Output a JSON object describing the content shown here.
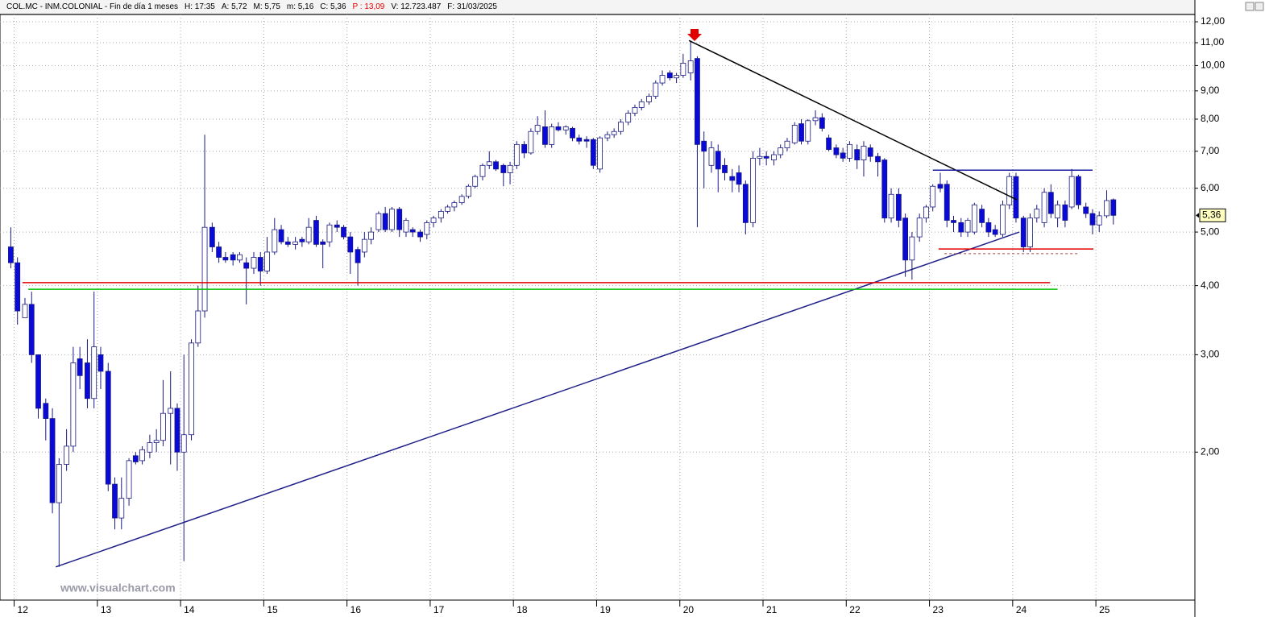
{
  "chart_data": {
    "type": "candlestick",
    "info": [
      "COL.MC - INM.COLONIAL - Fin de día 1 meses",
      "H: 17:35",
      "A: 5,72",
      "M: 5,75",
      "m: 5,16",
      "C: 5,36",
      "P : 13,09",
      "V: 12.723.487",
      "F: 31/03/2025"
    ],
    "watermark": "www.visualchart.com",
    "log_scale": true,
    "grid": true,
    "up_color": "#ffffff",
    "down_color": "#0a0ad8",
    "wick_color": "#1a1a80",
    "xlim": [
      2011.83,
      2026.19
    ],
    "ylim": [
      1.08,
      12.37
    ],
    "xticks": [
      {
        "value": 2012,
        "label": "12"
      },
      {
        "value": 2013,
        "label": "13"
      },
      {
        "value": 2014,
        "label": "14"
      },
      {
        "value": 2015,
        "label": "15"
      },
      {
        "value": 2016,
        "label": "16"
      },
      {
        "value": 2017,
        "label": "17"
      },
      {
        "value": 2018,
        "label": "18"
      },
      {
        "value": 2019,
        "label": "19"
      },
      {
        "value": 2020,
        "label": "20"
      },
      {
        "value": 2021,
        "label": "21"
      },
      {
        "value": 2022,
        "label": "22"
      },
      {
        "value": 2023,
        "label": "23"
      },
      {
        "value": 2024,
        "label": "24"
      },
      {
        "value": 2025,
        "label": "25"
      }
    ],
    "yticks": [
      {
        "value": 2,
        "label": "2,00"
      },
      {
        "value": 3,
        "label": "3,00"
      },
      {
        "value": 4,
        "label": "4,00"
      },
      {
        "value": 5,
        "label": "5,00"
      },
      {
        "value": 6,
        "label": "6,00"
      },
      {
        "value": 7,
        "label": "7,00"
      },
      {
        "value": 8,
        "label": "8,00"
      },
      {
        "value": 9,
        "label": "9,00"
      },
      {
        "value": 10,
        "label": "10,00"
      },
      {
        "value": 11,
        "label": "11,00"
      },
      {
        "value": 12,
        "label": "12,00"
      }
    ],
    "last_price": {
      "value": 5.36,
      "label": "5,36"
    },
    "x": [
      2011.96,
      2012.04,
      2012.13,
      2012.21,
      2012.29,
      2012.38,
      2012.46,
      2012.54,
      2012.63,
      2012.71,
      2012.79,
      2012.88,
      2012.96,
      2013.04,
      2013.13,
      2013.21,
      2013.29,
      2013.38,
      2013.46,
      2013.54,
      2013.63,
      2013.71,
      2013.79,
      2013.88,
      2013.96,
      2014.04,
      2014.13,
      2014.21,
      2014.29,
      2014.38,
      2014.46,
      2014.54,
      2014.63,
      2014.71,
      2014.79,
      2014.88,
      2014.96,
      2015.04,
      2015.13,
      2015.21,
      2015.29,
      2015.38,
      2015.46,
      2015.54,
      2015.63,
      2015.71,
      2015.79,
      2015.88,
      2015.96,
      2016.04,
      2016.13,
      2016.21,
      2016.29,
      2016.38,
      2016.46,
      2016.54,
      2016.63,
      2016.71,
      2016.79,
      2016.88,
      2016.96,
      2017.04,
      2017.13,
      2017.21,
      2017.29,
      2017.38,
      2017.46,
      2017.54,
      2017.63,
      2017.71,
      2017.79,
      2017.88,
      2017.96,
      2018.04,
      2018.13,
      2018.21,
      2018.29,
      2018.38,
      2018.46,
      2018.54,
      2018.63,
      2018.71,
      2018.79,
      2018.88,
      2018.96,
      2019.04,
      2019.13,
      2019.21,
      2019.29,
      2019.38,
      2019.46,
      2019.54,
      2019.63,
      2019.71,
      2019.79,
      2019.88,
      2019.96,
      2020.04,
      2020.13,
      2020.21,
      2020.29,
      2020.38,
      2020.46,
      2020.54,
      2020.63,
      2020.71,
      2020.79,
      2020.88,
      2020.96,
      2021.04,
      2021.13,
      2021.21,
      2021.29,
      2021.38,
      2021.46,
      2021.54,
      2021.63,
      2021.71,
      2021.79,
      2021.88,
      2021.96,
      2022.04,
      2022.13,
      2022.21,
      2022.29,
      2022.38,
      2022.46,
      2022.54,
      2022.63,
      2022.71,
      2022.79,
      2022.88,
      2022.96,
      2023.04,
      2023.13,
      2023.21,
      2023.29,
      2023.38,
      2023.46,
      2023.54,
      2023.63,
      2023.71,
      2023.79,
      2023.88,
      2023.96,
      2024.04,
      2024.13,
      2024.21,
      2024.29,
      2024.38,
      2024.46,
      2024.54,
      2024.63,
      2024.71,
      2024.79,
      2024.88,
      2024.96,
      2025.04,
      2025.13,
      2025.21
    ],
    "ohlc": [
      [
        4.7,
        5.1,
        4.3,
        4.4
      ],
      [
        4.4,
        4.5,
        3.4,
        3.6
      ],
      [
        3.5,
        3.8,
        3.5,
        3.7
      ],
      [
        3.7,
        3.9,
        2.9,
        3.0
      ],
      [
        3.0,
        3.0,
        2.3,
        2.4
      ],
      [
        2.45,
        2.5,
        2.1,
        2.3
      ],
      [
        2.3,
        2.4,
        1.55,
        1.62
      ],
      [
        1.62,
        1.95,
        1.24,
        1.9
      ],
      [
        1.9,
        2.2,
        1.85,
        2.05
      ],
      [
        2.05,
        3.1,
        2.0,
        2.9
      ],
      [
        2.95,
        3.1,
        2.6,
        2.75
      ],
      [
        2.9,
        3.2,
        2.4,
        2.5
      ],
      [
        2.5,
        3.9,
        2.4,
        3.1
      ],
      [
        3.0,
        3.1,
        2.6,
        2.8
      ],
      [
        2.8,
        2.9,
        1.7,
        1.75
      ],
      [
        1.75,
        1.8,
        1.45,
        1.52
      ],
      [
        1.52,
        1.8,
        1.45,
        1.65
      ],
      [
        1.65,
        1.95,
        1.6,
        1.93
      ],
      [
        1.97,
        2.0,
        1.9,
        1.92
      ],
      [
        1.93,
        2.05,
        1.9,
        2.02
      ],
      [
        2.0,
        2.15,
        1.95,
        2.08
      ],
      [
        2.08,
        2.2,
        2.0,
        2.1
      ],
      [
        2.1,
        2.7,
        2.05,
        2.35
      ],
      [
        2.35,
        2.8,
        1.9,
        2.4
      ],
      [
        2.4,
        2.45,
        1.85,
        2.0
      ],
      [
        2.0,
        3.0,
        1.27,
        2.15
      ],
      [
        2.15,
        3.2,
        2.1,
        3.15
      ],
      [
        3.15,
        4.0,
        3.1,
        3.6
      ],
      [
        3.6,
        7.5,
        3.5,
        5.1
      ],
      [
        5.1,
        5.2,
        4.6,
        4.7
      ],
      [
        4.7,
        4.8,
        4.4,
        4.5
      ],
      [
        4.5,
        4.6,
        4.4,
        4.45
      ],
      [
        4.55,
        4.6,
        4.35,
        4.45
      ],
      [
        4.45,
        4.6,
        4.4,
        4.55
      ],
      [
        4.4,
        4.5,
        3.7,
        4.3
      ],
      [
        4.3,
        4.6,
        4.2,
        4.5
      ],
      [
        4.5,
        4.6,
        4.0,
        4.25
      ],
      [
        4.25,
        4.9,
        4.2,
        4.6
      ],
      [
        4.6,
        5.3,
        4.55,
        5.05
      ],
      [
        5.05,
        5.15,
        4.75,
        4.8
      ],
      [
        4.8,
        4.9,
        4.7,
        4.75
      ],
      [
        4.75,
        4.9,
        4.65,
        4.8
      ],
      [
        4.85,
        4.9,
        4.7,
        4.8
      ],
      [
        4.8,
        5.3,
        4.75,
        5.1
      ],
      [
        5.25,
        5.35,
        4.7,
        4.75
      ],
      [
        4.8,
        4.85,
        4.3,
        4.75
      ],
      [
        4.8,
        5.2,
        4.7,
        5.15
      ],
      [
        5.15,
        5.25,
        5.0,
        5.1
      ],
      [
        5.1,
        5.15,
        4.85,
        4.9
      ],
      [
        4.9,
        5.0,
        4.2,
        4.6
      ],
      [
        4.65,
        4.7,
        4.0,
        4.4
      ],
      [
        4.6,
        5.0,
        4.5,
        4.85
      ],
      [
        4.85,
        5.1,
        4.75,
        5.0
      ],
      [
        5.05,
        5.45,
        5.0,
        5.4
      ],
      [
        5.4,
        5.55,
        5.0,
        5.05
      ],
      [
        5.05,
        5.55,
        5.0,
        5.5
      ],
      [
        5.5,
        5.55,
        4.9,
        5.05
      ],
      [
        5.0,
        5.3,
        4.9,
        5.25
      ],
      [
        5.05,
        5.1,
        4.9,
        5.0
      ],
      [
        5.0,
        5.05,
        4.8,
        4.9
      ],
      [
        4.95,
        5.25,
        4.85,
        5.2
      ],
      [
        5.2,
        5.35,
        5.1,
        5.3
      ],
      [
        5.3,
        5.5,
        5.2,
        5.45
      ],
      [
        5.45,
        5.6,
        5.4,
        5.55
      ],
      [
        5.55,
        5.7,
        5.45,
        5.65
      ],
      [
        5.65,
        5.85,
        5.6,
        5.8
      ],
      [
        5.8,
        6.1,
        5.75,
        6.05
      ],
      [
        6.05,
        6.35,
        6.0,
        6.3
      ],
      [
        6.3,
        6.65,
        6.2,
        6.6
      ],
      [
        6.6,
        7.0,
        6.5,
        6.7
      ],
      [
        6.7,
        6.75,
        6.45,
        6.5
      ],
      [
        6.6,
        6.65,
        6.05,
        6.4
      ],
      [
        6.4,
        6.7,
        6.1,
        6.6
      ],
      [
        6.6,
        7.3,
        6.5,
        7.2
      ],
      [
        7.2,
        7.3,
        6.8,
        6.95
      ],
      [
        6.95,
        7.7,
        6.9,
        7.6
      ],
      [
        7.6,
        8.1,
        7.5,
        7.8
      ],
      [
        7.75,
        8.3,
        7.1,
        7.2
      ],
      [
        7.2,
        7.85,
        7.1,
        7.75
      ],
      [
        7.75,
        7.9,
        7.6,
        7.65
      ],
      [
        7.65,
        7.8,
        7.5,
        7.75
      ],
      [
        7.7,
        7.75,
        7.3,
        7.4
      ],
      [
        7.4,
        7.5,
        7.2,
        7.3
      ],
      [
        7.35,
        7.45,
        7.1,
        7.3
      ],
      [
        7.35,
        7.4,
        6.5,
        6.6
      ],
      [
        6.5,
        7.45,
        6.4,
        7.4
      ],
      [
        7.4,
        7.6,
        7.3,
        7.5
      ],
      [
        7.5,
        7.7,
        7.4,
        7.6
      ],
      [
        7.6,
        8.0,
        7.5,
        7.9
      ],
      [
        7.9,
        8.3,
        7.8,
        8.2
      ],
      [
        8.2,
        8.5,
        8.1,
        8.4
      ],
      [
        8.4,
        8.7,
        8.3,
        8.6
      ],
      [
        8.6,
        8.9,
        8.5,
        8.8
      ],
      [
        8.8,
        9.4,
        8.7,
        9.3
      ],
      [
        9.3,
        9.8,
        9.2,
        9.6
      ],
      [
        9.7,
        9.8,
        9.4,
        9.5
      ],
      [
        9.5,
        9.7,
        9.3,
        9.6
      ],
      [
        9.6,
        10.5,
        9.5,
        10.1
      ],
      [
        9.7,
        11.1,
        9.4,
        10.2
      ],
      [
        10.3,
        10.4,
        5.1,
        7.2
      ],
      [
        7.3,
        7.6,
        6.0,
        7.0
      ],
      [
        6.6,
        7.3,
        6.4,
        7.1
      ],
      [
        7.0,
        7.2,
        5.9,
        6.5
      ],
      [
        6.6,
        6.8,
        6.2,
        6.4
      ],
      [
        6.3,
        6.5,
        5.9,
        6.2
      ],
      [
        6.4,
        6.6,
        5.9,
        6.1
      ],
      [
        6.1,
        6.2,
        4.95,
        5.2
      ],
      [
        5.2,
        7.0,
        5.1,
        6.8
      ],
      [
        6.8,
        7.1,
        6.6,
        6.85
      ],
      [
        6.85,
        7.0,
        6.6,
        6.8
      ],
      [
        6.75,
        7.0,
        6.6,
        6.9
      ],
      [
        6.9,
        7.2,
        6.8,
        7.1
      ],
      [
        7.1,
        7.4,
        7.0,
        7.3
      ],
      [
        7.25,
        7.9,
        7.2,
        7.8
      ],
      [
        7.85,
        8.0,
        7.2,
        7.3
      ],
      [
        7.3,
        8.0,
        7.2,
        7.95
      ],
      [
        7.95,
        8.3,
        7.8,
        8.05
      ],
      [
        8.05,
        8.2,
        7.6,
        7.7
      ],
      [
        7.4,
        7.5,
        7.0,
        7.05
      ],
      [
        7.1,
        7.2,
        6.8,
        6.9
      ],
      [
        6.95,
        7.1,
        6.7,
        6.8
      ],
      [
        6.8,
        7.3,
        6.7,
        7.2
      ],
      [
        7.05,
        7.2,
        6.5,
        6.75
      ],
      [
        6.75,
        7.3,
        6.3,
        7.15
      ],
      [
        7.1,
        7.2,
        6.7,
        6.85
      ],
      [
        6.85,
        6.95,
        6.3,
        6.7
      ],
      [
        6.75,
        6.8,
        5.2,
        5.3
      ],
      [
        5.3,
        6.0,
        5.2,
        5.85
      ],
      [
        5.85,
        6.0,
        5.1,
        5.25
      ],
      [
        5.3,
        5.4,
        4.15,
        4.45
      ],
      [
        4.45,
        5.0,
        4.1,
        4.9
      ],
      [
        4.9,
        5.4,
        4.8,
        5.3
      ],
      [
        5.3,
        5.6,
        5.2,
        5.55
      ],
      [
        5.55,
        6.1,
        5.45,
        6.05
      ],
      [
        6.1,
        6.4,
        5.9,
        6.0
      ],
      [
        6.1,
        6.2,
        5.1,
        5.25
      ],
      [
        5.25,
        5.35,
        5.0,
        5.2
      ],
      [
        5.2,
        5.3,
        4.9,
        5.0
      ],
      [
        5.0,
        5.3,
        4.9,
        5.25
      ],
      [
        5.0,
        5.65,
        4.95,
        5.6
      ],
      [
        5.5,
        5.6,
        5.1,
        5.2
      ],
      [
        5.2,
        5.3,
        4.9,
        5.0
      ],
      [
        5.05,
        5.15,
        4.9,
        4.95
      ],
      [
        4.95,
        5.7,
        4.9,
        5.6
      ],
      [
        5.6,
        6.4,
        5.5,
        6.3
      ],
      [
        6.3,
        6.4,
        5.2,
        5.3
      ],
      [
        5.3,
        5.35,
        4.6,
        4.7
      ],
      [
        4.7,
        5.4,
        4.6,
        5.3
      ],
      [
        5.3,
        5.6,
        5.2,
        5.5
      ],
      [
        5.2,
        6.0,
        5.1,
        5.9
      ],
      [
        5.9,
        6.1,
        5.3,
        5.4
      ],
      [
        5.3,
        5.7,
        5.1,
        5.6
      ],
      [
        5.6,
        5.7,
        5.1,
        5.25
      ],
      [
        5.55,
        6.5,
        5.5,
        6.3
      ],
      [
        6.3,
        6.35,
        5.5,
        5.6
      ],
      [
        5.55,
        5.65,
        5.3,
        5.4
      ],
      [
        5.4,
        5.5,
        4.95,
        5.15
      ],
      [
        5.15,
        5.45,
        5.0,
        5.35
      ],
      [
        5.35,
        5.95,
        5.3,
        5.7
      ],
      [
        5.72,
        5.75,
        5.16,
        5.36
      ]
    ],
    "lines": [
      {
        "x": [
          2012.5,
          2024.08
        ],
        "y": [
          1.24,
          5.0
        ],
        "color": "#20208a",
        "dashed": false
      },
      {
        "x": [
          2020.11,
          2024.05
        ],
        "y": [
          11.1,
          5.72
        ],
        "color": "#000000",
        "dashed": false
      },
      {
        "x": [
          2012.1,
          2024.45
        ],
        "y": [
          4.05,
          4.05
        ],
        "color": "#e00000",
        "dashed": false
      },
      {
        "x": [
          2012.17,
          2024.54
        ],
        "y": [
          3.94,
          3.94
        ],
        "color": "#00c000",
        "dashed": false
      },
      {
        "x": [
          2023.04,
          2024.96
        ],
        "y": [
          6.47,
          6.47
        ],
        "color": "#1a1aa0",
        "dashed": false
      },
      {
        "x": [
          2023.11,
          2024.97
        ],
        "y": [
          4.66,
          4.66
        ],
        "color": "#e00000",
        "dashed": false
      },
      {
        "x": [
          2023.18,
          2024.79
        ],
        "y": [
          4.57,
          4.57
        ],
        "color": "#a04040",
        "dashed": true
      }
    ]
  }
}
